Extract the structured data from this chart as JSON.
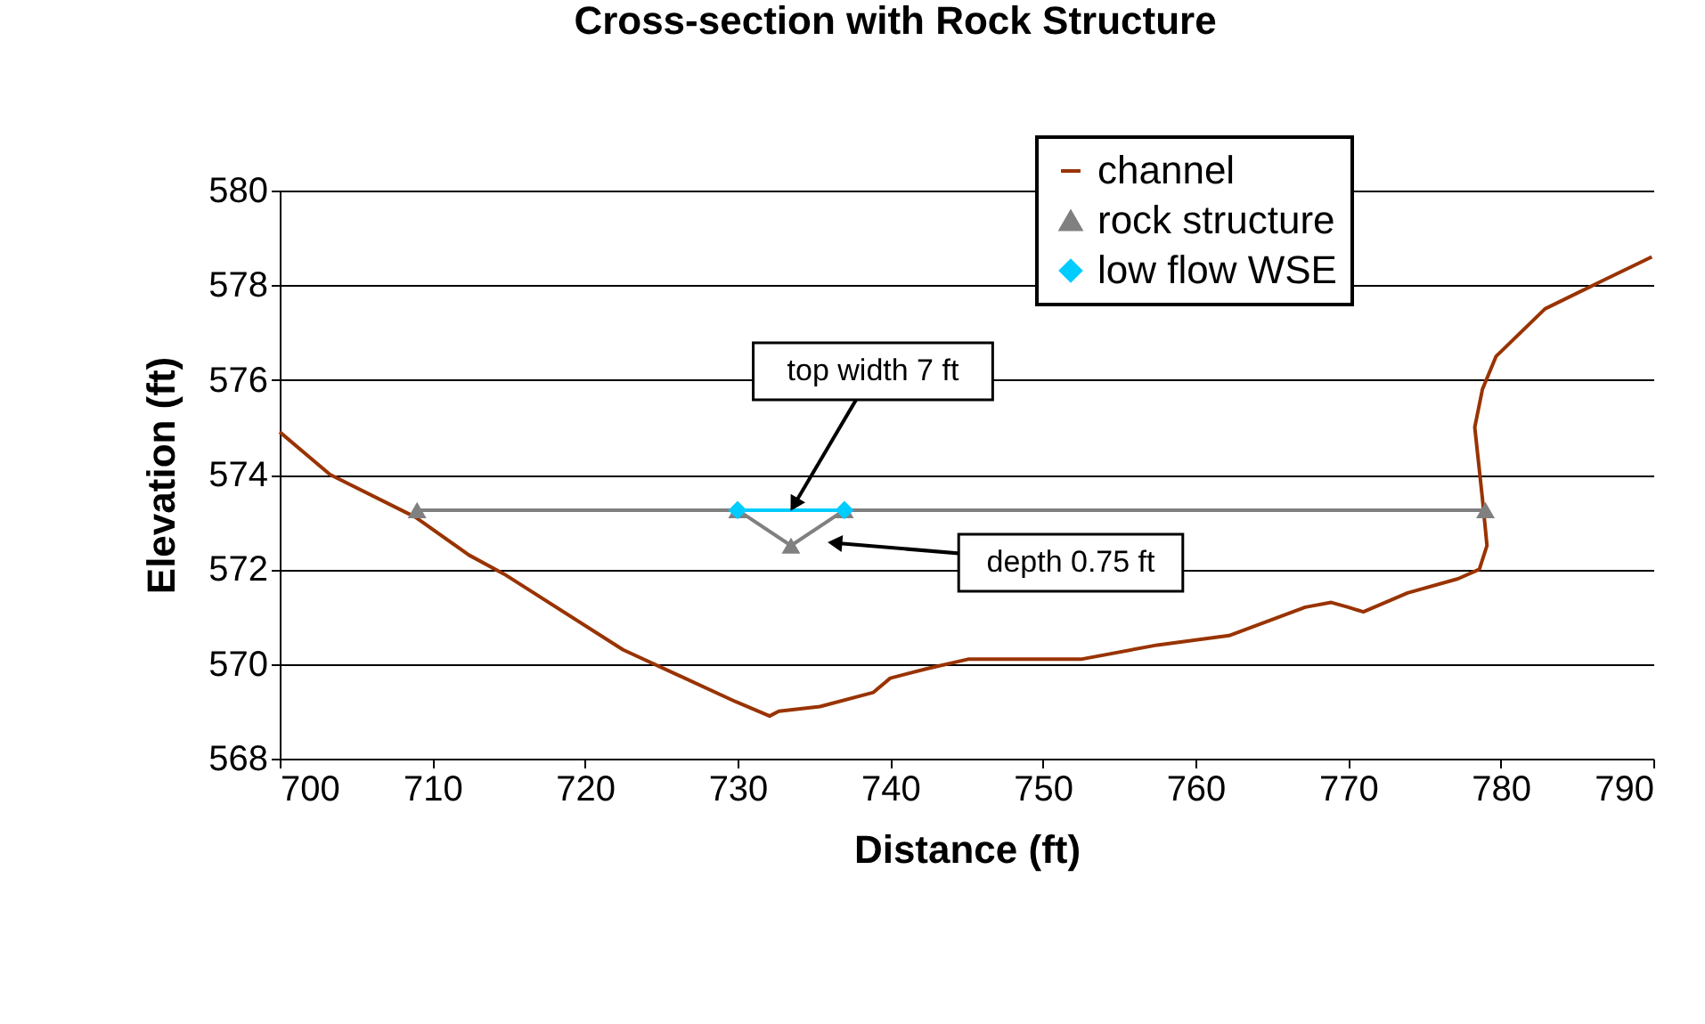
{
  "chart_data": {
    "type": "line",
    "title": "Cross-section with Rock Structure",
    "xlabel": "Distance (ft)",
    "ylabel": "Elevation (ft)",
    "xlim": [
      700,
      790
    ],
    "ylim": [
      568,
      580
    ],
    "xticks": [
      700,
      710,
      720,
      730,
      740,
      750,
      760,
      770,
      780,
      790
    ],
    "yticks": [
      568,
      570,
      572,
      574,
      576,
      578,
      580
    ],
    "grid": "y",
    "legend": "top right",
    "series": [
      {
        "name": "channel",
        "color": "#993300",
        "marker": "none",
        "x": [
          700,
          703.3,
          708.9,
          712.4,
          714.7,
          722.5,
          729.9,
          732.1,
          732.7,
          735.4,
          738.9,
          740,
          742.4,
          745.1,
          747,
          752.5,
          757.5,
          759.9,
          762.2,
          767.2,
          768.9,
          770,
          771,
          773.9,
          777.2,
          778.6,
          779.1,
          778.8,
          778.3,
          778.8,
          779.7,
          782.9,
          786.7,
          789.9
        ],
        "values": [
          574.9,
          574,
          573.1,
          572.3,
          571.9,
          570.3,
          569.2,
          568.9,
          569,
          569.1,
          569.4,
          569.7,
          569.9,
          570.1,
          570.1,
          570.1,
          570.4,
          570.5,
          570.6,
          571.2,
          571.3,
          571.2,
          571.1,
          571.5,
          571.8,
          572,
          572.5,
          573.5,
          575,
          575.8,
          576.5,
          577.5,
          578.1,
          578.6
        ]
      },
      {
        "name": "rock structure",
        "color": "#808080",
        "marker": "triangle",
        "x": [
          709,
          730,
          733.5,
          737,
          779
        ],
        "values": [
          573.25,
          573.25,
          572.5,
          573.25,
          573.25
        ]
      },
      {
        "name": "low flow WSE",
        "color": "#00ccff",
        "marker": "diamond",
        "x": [
          730,
          737
        ],
        "values": [
          573.25,
          573.25
        ]
      }
    ],
    "annotations": [
      {
        "text": "top width 7 ft",
        "x": 733.5,
        "y": 573.25
      },
      "depth 0.75 ft"
    ]
  }
}
